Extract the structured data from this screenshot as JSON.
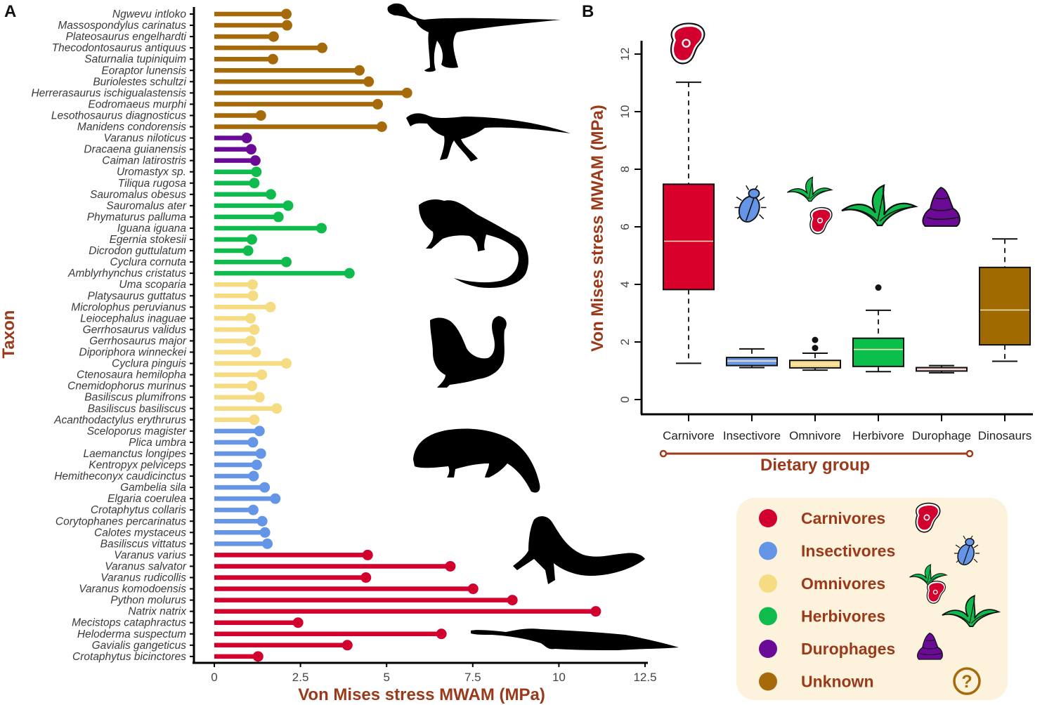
{
  "chart_data": [
    {
      "panel": "A",
      "type": "lollipop",
      "xlabel": "Von Mises stress MWAM (MPa)",
      "ylabel": "Taxon",
      "xlim": [
        0,
        12.5
      ],
      "xticks": [
        "0",
        "2.5",
        "5",
        "7.5",
        "10",
        "12.5"
      ],
      "xtick_values": [
        0,
        2.5,
        5,
        7.5,
        10,
        12.5
      ],
      "items": [
        {
          "taxon": "Ngwevu intloko",
          "group": "Unknown",
          "value": 2.09
        },
        {
          "taxon": "Massospondylus carinatus",
          "group": "Unknown",
          "value": 2.11
        },
        {
          "taxon": "Plateosaurus engelhardti",
          "group": "Unknown",
          "value": 1.72
        },
        {
          "taxon": "Thecodontosaurus antiquus",
          "group": "Unknown",
          "value": 3.13
        },
        {
          "taxon": "Saturnalia tupiniquim",
          "group": "Unknown",
          "value": 1.7
        },
        {
          "taxon": "Eoraptor lunensis",
          "group": "Unknown",
          "value": 4.21
        },
        {
          "taxon": "Buriolestes schultzi",
          "group": "Unknown",
          "value": 4.48
        },
        {
          "taxon": "Herrerasaurus ischigualastensis",
          "group": "Unknown",
          "value": 5.59
        },
        {
          "taxon": "Eodromaeus murphi",
          "group": "Unknown",
          "value": 4.74
        },
        {
          "taxon": "Lesothosaurus diagnosticus",
          "group": "Unknown",
          "value": 1.35
        },
        {
          "taxon": "Manidens condorensis",
          "group": "Unknown",
          "value": 4.86
        },
        {
          "taxon": "Varanus niloticus",
          "group": "Durophages",
          "value": 0.94
        },
        {
          "taxon": "Dracaena guianensis",
          "group": "Durophages",
          "value": 1.07
        },
        {
          "taxon": "Caiman latirostris",
          "group": "Durophages",
          "value": 1.19
        },
        {
          "taxon": "Uromastyx sp.",
          "group": "Herbivores",
          "value": 1.22
        },
        {
          "taxon": "Tiliqua rugosa",
          "group": "Herbivores",
          "value": 1.16
        },
        {
          "taxon": "Sauromalus obesus",
          "group": "Herbivores",
          "value": 1.64
        },
        {
          "taxon": "Sauromalus ater",
          "group": "Herbivores",
          "value": 2.14
        },
        {
          "taxon": "Phymaturus palluma",
          "group": "Herbivores",
          "value": 1.86
        },
        {
          "taxon": "Iguana iguana",
          "group": "Herbivores",
          "value": 3.11
        },
        {
          "taxon": "Egernia stokesii",
          "group": "Herbivores",
          "value": 1.09
        },
        {
          "taxon": "Dicrodon guttulatum",
          "group": "Herbivores",
          "value": 0.98
        },
        {
          "taxon": "Cyclura cornuta",
          "group": "Herbivores",
          "value": 2.09
        },
        {
          "taxon": "Amblyrhynchus cristatus",
          "group": "Herbivores",
          "value": 3.92
        },
        {
          "taxon": "Uma scoparia",
          "group": "Omnivores",
          "value": 1.11
        },
        {
          "taxon": "Platysaurus guttatus",
          "group": "Omnivores",
          "value": 1.12
        },
        {
          "taxon": "Microlophus peruvianus",
          "group": "Omnivores",
          "value": 1.63
        },
        {
          "taxon": "Leiocephalus inaguae",
          "group": "Omnivores",
          "value": 1.05
        },
        {
          "taxon": "Gerrhosaurus validus",
          "group": "Omnivores",
          "value": 1.16
        },
        {
          "taxon": "Gerrhosaurus major",
          "group": "Omnivores",
          "value": 1.05
        },
        {
          "taxon": "Diporiphora winneckei",
          "group": "Omnivores",
          "value": 1.2
        },
        {
          "taxon": "Cyclura pinguis",
          "group": "Omnivores",
          "value": 2.09
        },
        {
          "taxon": "Ctenosaura hemilopha",
          "group": "Omnivores",
          "value": 1.38
        },
        {
          "taxon": "Cnemidophorus murinus",
          "group": "Omnivores",
          "value": 1.09
        },
        {
          "taxon": "Basiliscus plumifrons",
          "group": "Omnivores",
          "value": 1.31
        },
        {
          "taxon": "Basiliscus basiliscus",
          "group": "Omnivores",
          "value": 1.81
        },
        {
          "taxon": "Acanthodactylus erythrurus",
          "group": "Omnivores",
          "value": 1.16
        },
        {
          "taxon": "Sceloporus magister",
          "group": "Insectivores",
          "value": 1.31
        },
        {
          "taxon": "Plica umbra",
          "group": "Insectivores",
          "value": 1.12
        },
        {
          "taxon": "Laemanctus longipes",
          "group": "Insectivores",
          "value": 1.35
        },
        {
          "taxon": "Kentropyx pelviceps",
          "group": "Insectivores",
          "value": 1.23
        },
        {
          "taxon": "Hemitheconyx caudicinctus",
          "group": "Insectivores",
          "value": 1.14
        },
        {
          "taxon": "Gambelia sila",
          "group": "Insectivores",
          "value": 1.46
        },
        {
          "taxon": "Elgaria coerulea",
          "group": "Insectivores",
          "value": 1.77
        },
        {
          "taxon": "Crotaphytus collaris",
          "group": "Insectivores",
          "value": 1.13
        },
        {
          "taxon": "Corytophanes percarinatus",
          "group": "Insectivores",
          "value": 1.39
        },
        {
          "taxon": "Calotes mystaceus",
          "group": "Insectivores",
          "value": 1.47
        },
        {
          "taxon": "Basiliscus vittatus",
          "group": "Insectivores",
          "value": 1.54
        },
        {
          "taxon": "Varanus varius",
          "group": "Carnivores",
          "value": 4.45
        },
        {
          "taxon": "Varanus salvator",
          "group": "Carnivores",
          "value": 6.85
        },
        {
          "taxon": "Varanus rudicollis",
          "group": "Carnivores",
          "value": 4.4
        },
        {
          "taxon": "Varanus komodoensis",
          "group": "Carnivores",
          "value": 7.51
        },
        {
          "taxon": "Python molurus",
          "group": "Carnivores",
          "value": 8.65
        },
        {
          "taxon": "Natrix natrix",
          "group": "Carnivores",
          "value": 11.07
        },
        {
          "taxon": "Mecistops cataphractus",
          "group": "Carnivores",
          "value": 2.43
        },
        {
          "taxon": "Heloderma suspectum",
          "group": "Carnivores",
          "value": 6.59
        },
        {
          "taxon": "Gavialis gangeticus",
          "group": "Carnivores",
          "value": 3.86
        },
        {
          "taxon": "Crotaphytus bicinctores",
          "group": "Carnivores",
          "value": 1.27
        }
      ]
    },
    {
      "panel": "B",
      "type": "box",
      "xlabel": "Dietary group",
      "ylabel": "Von Mises stress MWAM (MPa)",
      "ylim": [
        0,
        12
      ],
      "yticks": [
        "0",
        "2",
        "4",
        "6",
        "8",
        "10",
        "12"
      ],
      "ytick_values": [
        0,
        2,
        4,
        6,
        8,
        10,
        12
      ],
      "categories": [
        "Carnivore",
        "Insectivore",
        "Omnivore",
        "Herbivore",
        "Durophage",
        "Dinosaurs"
      ],
      "boxes": [
        {
          "category": "Carnivore",
          "group": "Carnivores",
          "min": 1.26,
          "q1": 3.82,
          "median": 5.5,
          "q3": 7.48,
          "max": 11.02,
          "outliers": []
        },
        {
          "category": "Insectivore",
          "group": "Insectivores",
          "min": 1.11,
          "q1": 1.18,
          "median": 1.34,
          "q3": 1.46,
          "max": 1.76,
          "outliers": []
        },
        {
          "category": "Omnivore",
          "group": "Omnivores",
          "min": 1.02,
          "q1": 1.1,
          "median": 1.23,
          "q3": 1.36,
          "max": 1.61,
          "outliers": [
            1.79,
            2.07
          ]
        },
        {
          "category": "Herbivore",
          "group": "Herbivores",
          "min": 0.97,
          "q1": 1.15,
          "median": 1.74,
          "q3": 2.13,
          "max": 3.1,
          "outliers": [
            3.89
          ]
        },
        {
          "category": "Durophage",
          "group": "Durophages",
          "min": 0.93,
          "q1": 0.99,
          "median": 1.05,
          "q3": 1.11,
          "max": 1.18,
          "outliers": []
        },
        {
          "category": "Dinosaurs",
          "group": "Unknown",
          "min": 1.33,
          "q1": 1.9,
          "median": 3.11,
          "q3": 4.59,
          "max": 5.58,
          "outliers": []
        }
      ],
      "bracket_span": [
        "Carnivore",
        "Durophage"
      ]
    }
  ],
  "panels": {
    "a_label": "A",
    "b_label": "B"
  },
  "groups": {
    "Carnivores": {
      "color": "#d2002f",
      "icon": "meat-icon"
    },
    "Insectivores": {
      "color": "#6495e6",
      "icon": "beetle-icon"
    },
    "Omnivores": {
      "color": "#f5dc82",
      "icon": "plant-and-meat-icon"
    },
    "Herbivores": {
      "color": "#0fbb4d",
      "icon": "plant-icon"
    },
    "Durophages": {
      "color": "#6a0a96",
      "icon": "shell-icon"
    },
    "Unknown": {
      "color": "#a66a0a",
      "icon": "question-mark-icon"
    }
  },
  "box_fill": {
    "Carnivores": "#d9002c",
    "Insectivores": "#6b9ae8",
    "Omnivores": "#f7dd8a",
    "Herbivores": "#0abf4a",
    "Durophages": "#eab8ee",
    "Unknown": "#a06a00"
  },
  "legend": {
    "items": [
      {
        "label": "Carnivores",
        "group": "Carnivores"
      },
      {
        "label": "Insectivores",
        "group": "Insectivores"
      },
      {
        "label": "Omnivores",
        "group": "Omnivores"
      },
      {
        "label": "Herbivores",
        "group": "Herbivores"
      },
      {
        "label": "Durophages",
        "group": "Durophages"
      },
      {
        "label": "Unknown",
        "group": "Unknown"
      }
    ],
    "background": "#fdf3dc",
    "question_glyph": "?"
  },
  "silhouettes": [
    "prosauropod-silhouette",
    "theropod-silhouette",
    "iguana-silhouette",
    "chameleon-lizard-silhouette",
    "skink-silhouette",
    "monitor-lizard-silhouette",
    "gharial-silhouette"
  ],
  "accent_color": "#9b3a1a"
}
